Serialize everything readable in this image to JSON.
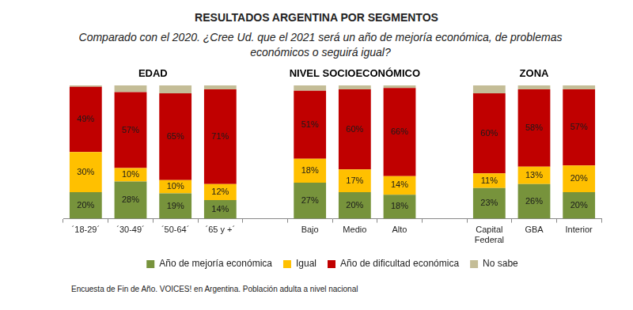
{
  "chart_data": {
    "type": "bar",
    "title": "RESULTADOS ARGENTINA POR SEGMENTOS",
    "subtitle": "Comparado con el 2020. ¿Cree Ud. que el 2021 será un año de mejoría económica, de problemas económicos o seguirá igual?",
    "annotations": [
      "EDAD",
      "NIVEL SOCIOECONÓMICO",
      "ZONA"
    ],
    "caption": "Encuesta de Fin de Año. VOICES! en Argentina. Población adulta a nivel nacional",
    "categories": [
      "´18-29´",
      "´30-49´",
      "´50-64´",
      "´65 y +´",
      null,
      "Bajo",
      "Medio",
      "Alto",
      null,
      "Capital Federal",
      "GBA",
      "Interior"
    ],
    "series": [
      {
        "name": "Año de mejoría económica",
        "color": "#77933c",
        "values": [
          20,
          28,
          19,
          14,
          null,
          27,
          20,
          18,
          null,
          23,
          26,
          20
        ],
        "value_labels": [
          "20%",
          "28%",
          "19%",
          "14%",
          null,
          "27%",
          "20%",
          "18%",
          null,
          "23%",
          "26%",
          "20%"
        ]
      },
      {
        "name": "Igual",
        "color": "#ffc000",
        "values": [
          30,
          10,
          10,
          12,
          null,
          18,
          17,
          14,
          null,
          11,
          13,
          20
        ],
        "value_labels": [
          "30%",
          "10%",
          "10%",
          "12%",
          null,
          "18%",
          "17%",
          "14%",
          null,
          "11%",
          "13%",
          "20%"
        ]
      },
      {
        "name": "Año de dificultad económica",
        "color": "#c00000",
        "values": [
          49,
          57,
          65,
          71,
          null,
          51,
          60,
          66,
          null,
          60,
          58,
          57
        ],
        "value_labels": [
          "49%",
          "57%",
          "65%",
          "71%",
          null,
          "51%",
          "60%",
          "66%",
          null,
          "60%",
          "58%",
          "57%"
        ]
      },
      {
        "name": "No sabe",
        "color": "#c4bd97",
        "values": [
          1,
          5,
          6,
          3,
          null,
          4,
          3,
          2,
          null,
          6,
          3,
          3
        ]
      }
    ],
    "ylim": [
      0,
      100
    ],
    "stacked": true,
    "grid": false,
    "tick_labels": "x",
    "data_labels": true,
    "legend": "bottom"
  }
}
